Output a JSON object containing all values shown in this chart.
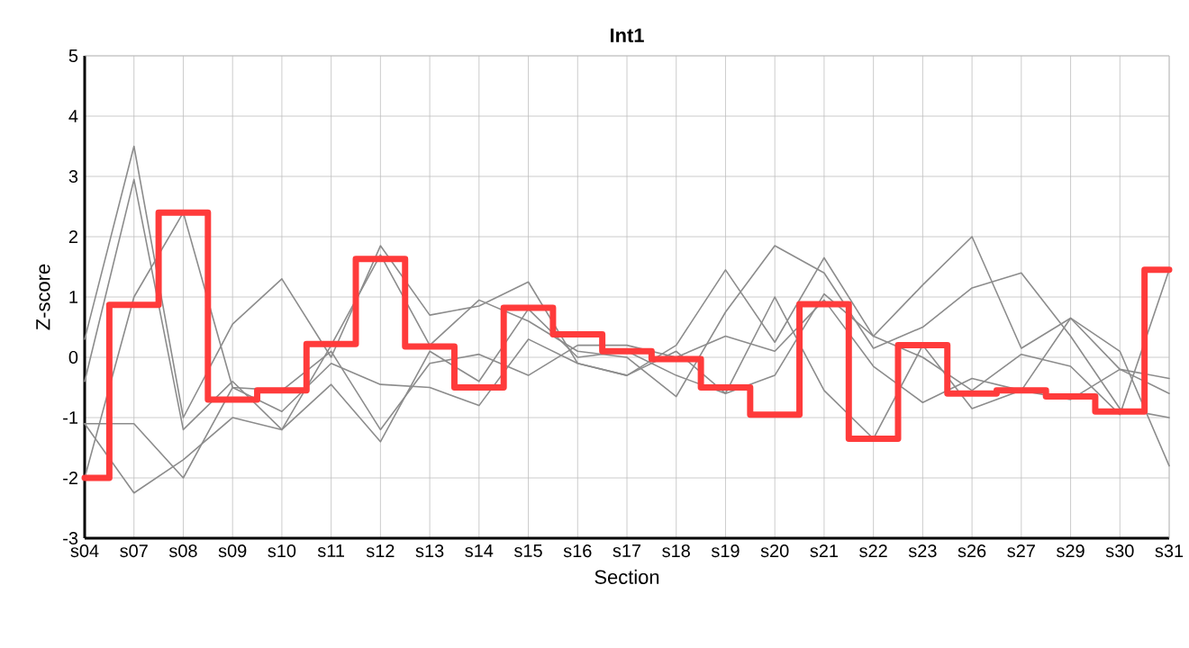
{
  "chart_data": {
    "type": "line",
    "title": "Int1",
    "xlabel": "Section",
    "ylabel": "Z-score",
    "categories": [
      "s04",
      "s07",
      "s08",
      "s09",
      "s10",
      "s11",
      "s12",
      "s13",
      "s14",
      "s15",
      "s16",
      "s17",
      "s18",
      "s19",
      "s20",
      "s21",
      "s22",
      "s23",
      "s26",
      "s27",
      "s29",
      "s30",
      "s31"
    ],
    "ylim": [
      -3,
      5
    ],
    "yticks": [
      -3,
      -2,
      -1,
      0,
      1,
      2,
      3,
      4,
      5
    ],
    "grid": true,
    "marker": "none",
    "series": [
      {
        "color": "#8c8c8c",
        "values": [
          0.3,
          3.5,
          -1.0,
          0.55,
          1.3,
          0.0,
          1.85,
          0.7,
          0.85,
          1.25,
          -0.1,
          -0.3,
          0.2,
          1.45,
          0.25,
          1.65,
          0.35,
          1.2,
          2.0,
          0.15,
          0.65,
          -0.2,
          -0.6
        ]
      },
      {
        "color": "#8c8c8c",
        "values": [
          -0.4,
          2.95,
          -1.2,
          -0.4,
          -1.2,
          0.2,
          1.7,
          0.2,
          0.95,
          0.6,
          0.1,
          0.0,
          -0.65,
          0.75,
          1.85,
          1.4,
          0.15,
          0.5,
          1.15,
          1.4,
          0.35,
          -0.85,
          -1.0
        ]
      },
      {
        "color": "#8c8c8c",
        "values": [
          -1.1,
          -1.1,
          -2.0,
          -0.5,
          -0.9,
          -0.1,
          -0.45,
          -0.5,
          -0.8,
          0.3,
          -0.1,
          -0.3,
          0.1,
          -0.6,
          -0.3,
          1.05,
          0.35,
          0.0,
          -0.55,
          0.05,
          -0.15,
          -0.95,
          1.45
        ]
      },
      {
        "color": "#8c8c8c",
        "values": [
          -2.0,
          1.0,
          2.4,
          -0.5,
          -0.55,
          0.1,
          -1.2,
          -0.1,
          0.05,
          -0.3,
          0.2,
          0.2,
          0.0,
          0.35,
          0.1,
          0.95,
          -0.15,
          -0.75,
          -0.35,
          -0.55,
          0.65,
          0.1,
          -1.8
        ]
      },
      {
        "color": "#8c8c8c",
        "values": [
          -1.1,
          -2.25,
          -1.7,
          -1.0,
          -1.2,
          -0.45,
          -1.4,
          0.1,
          -0.4,
          0.8,
          0.0,
          0.1,
          -0.3,
          -0.6,
          1.0,
          -0.55,
          -1.35,
          0.2,
          -0.85,
          -0.55,
          -0.7,
          -0.2,
          -0.35
        ]
      },
      {
        "type": "step",
        "color": "#ff3b3b",
        "values": [
          -2.0,
          0.87,
          2.4,
          -0.7,
          -0.55,
          0.22,
          1.63,
          0.18,
          -0.5,
          0.82,
          0.38,
          0.1,
          -0.03,
          -0.5,
          -0.95,
          0.88,
          -1.35,
          0.2,
          -0.6,
          -0.55,
          -0.65,
          -0.9,
          1.45
        ]
      }
    ]
  }
}
